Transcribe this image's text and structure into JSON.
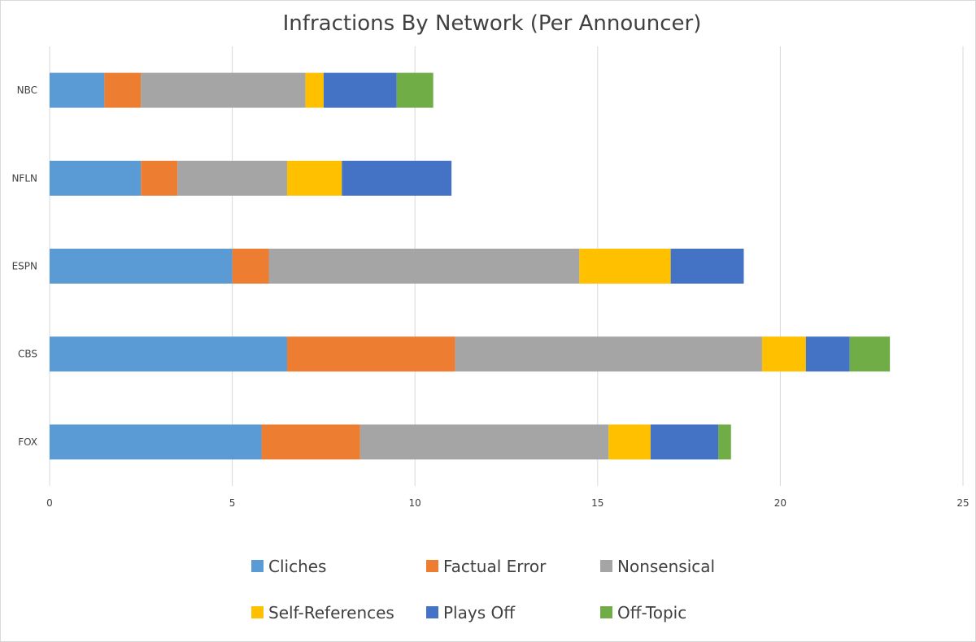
{
  "chart_data": {
    "type": "bar",
    "orientation": "horizontal",
    "stacked": true,
    "title": "Infractions By Network (Per Announcer)",
    "categories": [
      "NBC",
      "NFLN",
      "ESPN",
      "CBS",
      "FOX"
    ],
    "series": [
      {
        "name": "Cliches",
        "color": "#5b9bd5",
        "values": [
          1.5,
          2.5,
          5.0,
          6.5,
          5.8
        ]
      },
      {
        "name": "Factual Error",
        "color": "#ed7d31",
        "values": [
          1.0,
          1.0,
          1.0,
          4.6,
          2.7
        ]
      },
      {
        "name": "Nonsensical",
        "color": "#a5a5a5",
        "values": [
          4.5,
          3.0,
          8.5,
          8.4,
          6.8
        ]
      },
      {
        "name": "Self-References",
        "color": "#ffc000",
        "values": [
          0.5,
          1.5,
          2.5,
          1.2,
          1.15
        ]
      },
      {
        "name": "Plays Off",
        "color": "#4472c4",
        "values": [
          2.0,
          3.0,
          2.0,
          1.2,
          1.85
        ]
      },
      {
        "name": "Off-Topic",
        "color": "#70ad47",
        "values": [
          1.0,
          0.0,
          0.0,
          1.1,
          0.35
        ]
      }
    ],
    "xlim": [
      0,
      25
    ],
    "xticks": [
      "0",
      "5",
      "10",
      "15",
      "20",
      "25"
    ],
    "xlabel": "",
    "ylabel": "",
    "grid": "vertical",
    "legend": "bottom"
  }
}
